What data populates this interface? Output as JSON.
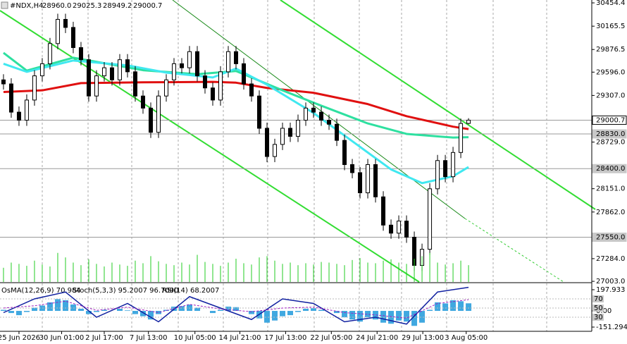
{
  "header": {
    "symbol": "#NDX,H4",
    "ohlc": [
      "28960.0",
      "29025.3",
      "28949.2",
      "29000.7"
    ]
  },
  "chart_data": {
    "type": "candlestick",
    "xlim": [
      -0.45,
      75.9
    ],
    "ylim": [
      26995,
      30490
    ],
    "xticks": [
      {
        "value": 2,
        "label": "25 Jun 2026"
      },
      {
        "value": 7.5,
        "label": "30 Jun 01:00"
      },
      {
        "value": 13,
        "label": "2 Jul 17:00"
      },
      {
        "value": 18.7,
        "label": "7 Jul 13:00"
      },
      {
        "value": 24.7,
        "label": "10 Jul 05:00"
      },
      {
        "value": 30.5,
        "label": "14 Jul 21:00"
      },
      {
        "value": 36.4,
        "label": "17 Jul 13:00"
      },
      {
        "value": 42.3,
        "label": "22 Jul 05:00"
      },
      {
        "value": 48.2,
        "label": "24 Jul 21:00"
      },
      {
        "value": 54.1,
        "label": "29 Jul 13:00"
      },
      {
        "value": 59.7,
        "label": "3 Aug 05:00"
      }
    ],
    "yticks": [
      30454.4,
      30165.5,
      29876.5,
      {
        "value": 29596,
        "label": "29596.0"
      },
      {
        "value": 29307,
        "label": "29307.0"
      },
      {
        "value": 28729,
        "label": "28729.0"
      },
      {
        "value": 28151,
        "label": "28151.0"
      },
      {
        "value": 27862,
        "label": "27862.0"
      },
      {
        "value": 27284,
        "label": "27284.0"
      },
      {
        "value": 27003,
        "label": "27003.0"
      }
    ],
    "open": [
      29500,
      29450,
      29100,
      29000,
      29250,
      29550,
      29700,
      29950,
      30250,
      30150,
      29900,
      29750,
      29300,
      29550,
      29650,
      29500,
      29750,
      29600,
      29300,
      29150,
      28850,
      29300,
      29500,
      29700,
      29650,
      29850,
      29550,
      29400,
      29250,
      29600,
      29850,
      29700,
      29450,
      29300,
      28900,
      28550,
      28700,
      28900,
      28800,
      29000,
      29150,
      29100,
      29000,
      28950,
      28750,
      28450,
      28350,
      28100,
      28450,
      28050,
      27700,
      27600,
      27750,
      27550,
      27200,
      27400,
      28150,
      28500,
      28300,
      28600,
      28960
    ],
    "high": [
      29570,
      29520,
      29170,
      29320,
      29620,
      29770,
      30020,
      30320,
      30320,
      30220,
      29970,
      29820,
      29620,
      29720,
      29720,
      29820,
      29820,
      29670,
      29370,
      29220,
      29370,
      29570,
      29770,
      29770,
      29920,
      29920,
      29620,
      29470,
      29670,
      29920,
      29920,
      29770,
      29520,
      29370,
      28970,
      28770,
      28970,
      28970,
      29070,
      29220,
      29220,
      29170,
      29070,
      29020,
      28820,
      28520,
      28420,
      28520,
      28520,
      28120,
      27770,
      27820,
      27820,
      27620,
      27470,
      28220,
      28570,
      28570,
      28670,
      29020,
      29025.3
    ],
    "low": [
      29380,
      29030,
      28930,
      28930,
      29180,
      29480,
      29630,
      29880,
      30080,
      29830,
      29680,
      29230,
      29230,
      29480,
      29430,
      29430,
      29530,
      29230,
      29080,
      28780,
      28780,
      29230,
      29430,
      29580,
      29580,
      29480,
      29330,
      29180,
      29180,
      29530,
      29630,
      29380,
      29230,
      28830,
      28480,
      28480,
      28630,
      28730,
      28730,
      28930,
      29030,
      28930,
      28880,
      28680,
      28380,
      28280,
      28030,
      28030,
      27980,
      27630,
      27530,
      27530,
      27480,
      27130,
      27130,
      27330,
      28080,
      28230,
      28230,
      28530,
      28949.2
    ],
    "close": [
      29450,
      29100,
      29000,
      29250,
      29550,
      29700,
      29950,
      30250,
      30150,
      29900,
      29750,
      29300,
      29550,
      29650,
      29500,
      29750,
      29600,
      29300,
      29150,
      28850,
      29300,
      29500,
      29700,
      29650,
      29850,
      29550,
      29400,
      29250,
      29600,
      29850,
      29700,
      29450,
      29300,
      28900,
      28550,
      28700,
      28900,
      28800,
      29000,
      29150,
      29100,
      29000,
      28950,
      28750,
      28450,
      28350,
      28100,
      28450,
      28050,
      27700,
      27600,
      27750,
      27550,
      27200,
      27400,
      28150,
      28500,
      28300,
      28600,
      28960,
      29000.7
    ],
    "volume": [
      22,
      30,
      28,
      25,
      33,
      27,
      24,
      45,
      38,
      30,
      26,
      35,
      28,
      24,
      30,
      27,
      25,
      33,
      29,
      40,
      32,
      28,
      26,
      30,
      27,
      42,
      31,
      28,
      25,
      30,
      36,
      29,
      27,
      38,
      40,
      33,
      28,
      30,
      26,
      29,
      27,
      31,
      30,
      28,
      26,
      34,
      37,
      30,
      29,
      33,
      35,
      30,
      28,
      36,
      40,
      45,
      30,
      27,
      29,
      33,
      26
    ],
    "volume_lim": [
      0,
      60
    ],
    "volume_color": "#22cc22",
    "series": [
      {
        "color": "#e01010",
        "x": [
          0,
          5,
          10,
          18,
          27,
          30,
          34,
          40,
          47,
          52,
          58,
          60
        ],
        "values": [
          29350,
          29370,
          29460,
          29470,
          29475,
          29465,
          29400,
          29340,
          29200,
          29050,
          28920,
          28890
        ]
      },
      {
        "color": "#2ee0a0",
        "x": [
          0,
          3,
          9,
          18,
          25,
          30,
          36,
          41,
          47,
          52,
          58,
          60
        ],
        "values": [
          29835,
          29615,
          29775,
          29620,
          29570,
          29610,
          29370,
          29180,
          28960,
          28830,
          28785,
          28790
        ]
      },
      {
        "color": "#40e8f0",
        "x": [
          0,
          3,
          9,
          16,
          21,
          27,
          30,
          34,
          40,
          45,
          50,
          54,
          58,
          60
        ],
        "values": [
          29700,
          29600,
          29740,
          29680,
          29590,
          29530,
          29640,
          29440,
          29090,
          28740,
          28390,
          28220,
          28305,
          28420
        ]
      }
    ],
    "levels": [
      {
        "value": 29000.7,
        "label": "29000.7",
        "color": "#ffffff"
      },
      {
        "value": 28830,
        "label": "28830.0",
        "color": "#c8c8c8"
      },
      {
        "value": 28400,
        "label": "28400.0",
        "color": "#c8c8c8"
      },
      {
        "value": 27550,
        "label": "27550.0",
        "color": "#c8c8c8"
      }
    ]
  },
  "indicators": {
    "texts": [
      "OsMA(12,26,9) 70.984",
      "Stoch(5,3,3) 95.2007 96.7090",
      "RSI(14) 68.2007"
    ],
    "osma": {
      "color": "#40a8e0",
      "ylim": [
        -151.294,
        197.933
      ],
      "yticks": [
        {
          "value": 197.933,
          "label": "197.933"
        },
        {
          "value": 0,
          "label": "0.00"
        },
        {
          "value": -151.294,
          "label": "-151.294"
        }
      ],
      "values": [
        10,
        -20,
        -40,
        -10,
        30,
        50,
        80,
        110,
        100,
        60,
        20,
        -30,
        -10,
        10,
        0,
        20,
        5,
        -30,
        -50,
        -80,
        -30,
        10,
        40,
        45,
        60,
        30,
        0,
        -20,
        10,
        40,
        35,
        0,
        -30,
        -70,
        -110,
        -90,
        -50,
        -40,
        -10,
        20,
        25,
        10,
        0,
        -20,
        -60,
        -80,
        -100,
        -60,
        -80,
        -110,
        -120,
        -90,
        -100,
        -140,
        -110,
        10,
        80,
        70,
        100,
        90,
        70.984
      ]
    },
    "osc_ylim": [
      0,
      100
    ],
    "osc_yticks": [
      70,
      50,
      30
    ],
    "stoch": {
      "color": "#1020a0",
      "x": [
        0,
        4,
        8,
        12,
        16,
        20,
        24,
        28,
        32,
        36,
        40,
        44,
        48,
        52,
        56,
        60
      ],
      "values": [
        40,
        70,
        85,
        30,
        60,
        20,
        75,
        50,
        25,
        70,
        60,
        20,
        30,
        15,
        85,
        95.2007
      ]
    },
    "rsi": {
      "color": "#a020c0",
      "x": [
        0,
        4,
        8,
        12,
        16,
        20,
        24,
        28,
        32,
        36,
        40,
        44,
        48,
        52,
        56,
        60
      ],
      "values": [
        50,
        55,
        65,
        45,
        52,
        40,
        58,
        48,
        42,
        50,
        52,
        40,
        35,
        28,
        60,
        68.2007
      ]
    }
  }
}
